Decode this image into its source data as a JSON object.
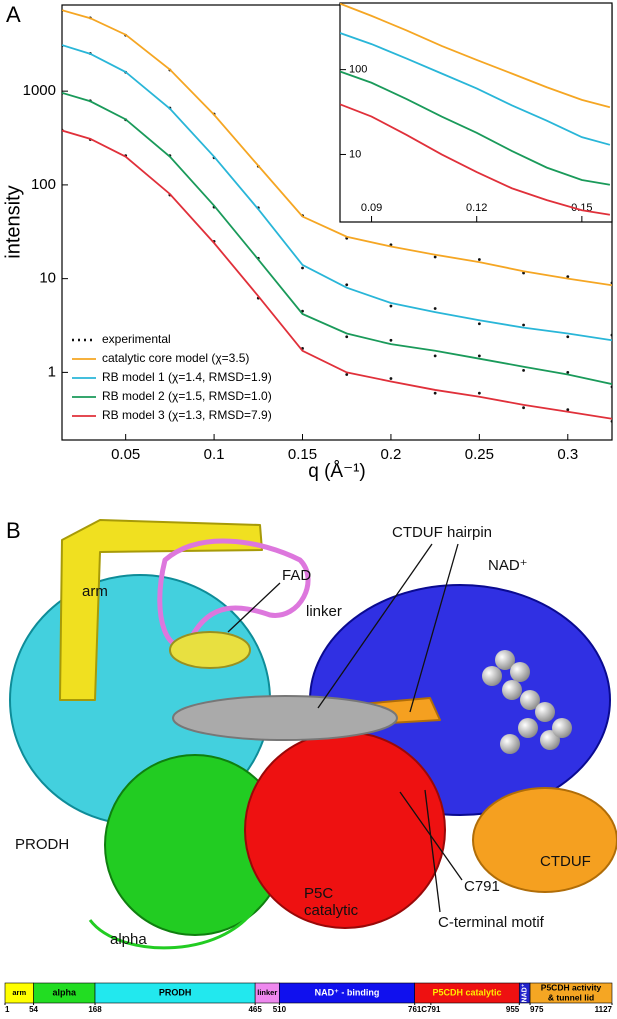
{
  "chart_data": [
    {
      "type": "line",
      "panel": "A",
      "y_label": "intensity",
      "x_label": "q (Å⁻¹)",
      "log_y": true,
      "legend": "lower left",
      "xlim": [
        0.014,
        0.325
      ],
      "ylim": [
        0.19,
        8300
      ],
      "xticks": [
        0.05,
        0.1,
        0.15,
        0.2,
        0.25,
        0.3
      ],
      "yticks": [
        1,
        10,
        100,
        1000
      ],
      "x": [
        0.014,
        0.03,
        0.05,
        0.075,
        0.1,
        0.125,
        0.15,
        0.175,
        0.2,
        0.225,
        0.25,
        0.275,
        0.3,
        0.325
      ],
      "series": [
        {
          "name": "experimental",
          "color": "#111111",
          "style": "dotted",
          "values": [
            7250,
            6050,
            3950,
            1680,
            570,
            158,
            47,
            27,
            23,
            17,
            16,
            11.5,
            10.5,
            9
          ]
        },
        {
          "color": "#111111",
          "style": "dotted",
          "values": [
            3050,
            2520,
            1590,
            660,
            195,
            57,
            13,
            8.6,
            5.1,
            4.8,
            3.3,
            3.2,
            2.4,
            2.5
          ]
        },
        {
          "color": "#111111",
          "style": "dotted",
          "values": [
            950,
            790,
            495,
            205,
            58,
            16.5,
            4.5,
            2.4,
            2.2,
            1.5,
            1.5,
            1.05,
            1.0,
            0.7
          ]
        },
        {
          "color": "#111111",
          "style": "dotted",
          "values": [
            385,
            305,
            205,
            78,
            25,
            6.2,
            1.8,
            0.95,
            0.86,
            0.6,
            0.6,
            0.42,
            0.4,
            0.3
          ]
        },
        {
          "name": "catalytic core model (χ=3.5)",
          "color": "#f5a623",
          "style": "line",
          "values": [
            7300,
            6000,
            4000,
            1700,
            560,
            160,
            46,
            28,
            22,
            18,
            15,
            12,
            10,
            8.5
          ]
        },
        {
          "name": "RB model 1 (χ=1.4, RMSD=1.9)",
          "color": "#29b6d8",
          "style": "line",
          "values": [
            3100,
            2500,
            1600,
            650,
            200,
            55,
            14,
            8,
            5.5,
            4.4,
            3.6,
            3,
            2.6,
            2.2
          ]
        },
        {
          "name": "RB model 2 (χ=1.5, RMSD=1.0)",
          "color": "#1a9a5a",
          "style": "line",
          "values": [
            960,
            780,
            500,
            200,
            60,
            16,
            4.2,
            2.6,
            2,
            1.7,
            1.4,
            1.15,
            0.95,
            0.75
          ]
        },
        {
          "name": "RB model 3 (χ=1.3, RMSD=7.9)",
          "color": "#e0303a",
          "style": "line",
          "values": [
            380,
            310,
            200,
            80,
            24,
            6.5,
            1.7,
            1.0,
            0.8,
            0.65,
            0.55,
            0.45,
            0.38,
            0.32
          ]
        }
      ]
    },
    {
      "type": "line",
      "log_y": true,
      "xlim": [
        0.081,
        0.1586
      ],
      "ylim": [
        1.6,
        610
      ],
      "xticks": [
        0.09,
        0.12,
        0.15
      ],
      "yticks": [
        10,
        100
      ],
      "x": [
        0.081,
        0.09,
        0.1,
        0.11,
        0.12,
        0.13,
        0.14,
        0.15,
        0.158
      ],
      "series": [
        {
          "color": "#f5a623",
          "style": "line",
          "values": [
            600,
            430,
            290,
            190,
            130,
            90,
            62,
            44,
            36
          ]
        },
        {
          "color": "#29b6d8",
          "style": "line",
          "values": [
            270,
            200,
            135,
            90,
            60,
            38,
            25,
            16,
            13
          ]
        },
        {
          "color": "#1a9a5a",
          "style": "line",
          "values": [
            95,
            70,
            45,
            28,
            18,
            11,
            7,
            5,
            4.4
          ]
        },
        {
          "color": "#e0303a",
          "style": "line",
          "values": [
            39,
            28,
            17,
            10,
            6.2,
            4,
            2.9,
            2.2,
            1.95
          ]
        }
      ]
    }
  ],
  "panel_b": {
    "label": "B",
    "annotations": [
      "arm",
      "FAD",
      "CTDUF hairpin",
      "NAD⁺",
      "linker",
      "PRODH",
      "CTDUF",
      "C791",
      "P5C",
      "catalytic",
      "alpha",
      "C-terminal motif"
    ]
  },
  "domain_bar": {
    "segments": [
      {
        "label": "arm",
        "start": 1,
        "end": 54,
        "color": "#ffff00",
        "text_color": "#000000"
      },
      {
        "label": "alpha",
        "start": 54,
        "end": 168,
        "color": "#22dd22",
        "text_color": "#000000"
      },
      {
        "label": "PRODH",
        "start": 168,
        "end": 465,
        "color": "#22e8ee",
        "text_color": "#000000"
      },
      {
        "label": "linker",
        "start": 465,
        "end": 510,
        "color": "#ee88ee",
        "text_color": "#000000"
      },
      {
        "label": "NAD⁺ - binding",
        "start": 510,
        "end": 761,
        "color": "#1010ee",
        "text_color": "#ffffff"
      },
      {
        "label": "P5CDH catalytic",
        "start": 761,
        "end": 955,
        "color": "#ee1111",
        "text_color": "#ffee00"
      },
      {
        "label": "NAD⁺",
        "start": 955,
        "end": 975,
        "color": "#2222cc",
        "text_color": "#ffffff"
      },
      {
        "label": [
          "P5CDH activity",
          "& tunnel lid"
        ],
        "start": 975,
        "end": 1127,
        "color": "#f5a623",
        "text_color": "#000000"
      }
    ],
    "ticks": [
      1,
      54,
      168,
      465,
      510,
      761,
      {
        "value": 791,
        "label": "C791"
      },
      955,
      975,
      1127
    ]
  }
}
